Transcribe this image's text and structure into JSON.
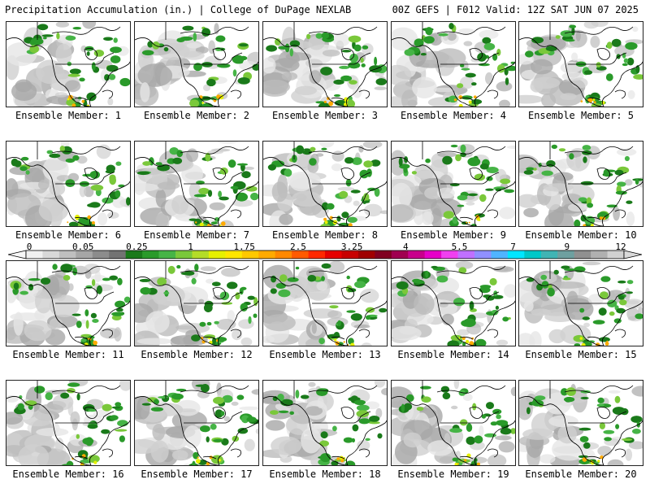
{
  "header": {
    "title": "Precipitation Accumulation (in.) | College of DuPage NEXLAB",
    "run_info": "00Z GEFS | F012 Valid: 12Z SAT JUN 07 2025"
  },
  "panels": [
    {
      "label": "Ensemble Member: 1"
    },
    {
      "label": "Ensemble Member: 2"
    },
    {
      "label": "Ensemble Member: 3"
    },
    {
      "label": "Ensemble Member: 4"
    },
    {
      "label": "Ensemble Member: 5"
    },
    {
      "label": "Ensemble Member: 6"
    },
    {
      "label": "Ensemble Member: 7"
    },
    {
      "label": "Ensemble Member: 8"
    },
    {
      "label": "Ensemble Member: 9"
    },
    {
      "label": "Ensemble Member: 10"
    },
    {
      "label": "Ensemble Member: 11"
    },
    {
      "label": "Ensemble Member: 12"
    },
    {
      "label": "Ensemble Member: 13"
    },
    {
      "label": "Ensemble Member: 14"
    },
    {
      "label": "Ensemble Member: 15"
    },
    {
      "label": "Ensemble Member: 16"
    },
    {
      "label": "Ensemble Member: 17"
    },
    {
      "label": "Ensemble Member: 18"
    },
    {
      "label": "Ensemble Member: 19"
    },
    {
      "label": "Ensemble Member: 20"
    }
  ],
  "colorbar": {
    "tick_labels": [
      "0",
      "0.05",
      "0.25",
      "1",
      "1.75",
      "2.5",
      "3.25",
      "4",
      "5.5",
      "7",
      "9",
      "12"
    ],
    "colors": [
      "#f0f0f0",
      "#d8d8d8",
      "#bfbfbf",
      "#a6a6a6",
      "#8c8c8c",
      "#737373",
      "#1a7a1a",
      "#2a9a2a",
      "#46b446",
      "#7ac83a",
      "#b4dc28",
      "#e6f000",
      "#ffe600",
      "#ffc800",
      "#ffaa00",
      "#ff8800",
      "#ff5a00",
      "#ff2800",
      "#e60000",
      "#c80000",
      "#a00000",
      "#800020",
      "#a00050",
      "#c8008c",
      "#e600c8",
      "#f040f0",
      "#c070ff",
      "#9090ff",
      "#50b4ff",
      "#00e6ff",
      "#00c8c8",
      "#40b4b4",
      "#6ea0a0",
      "#909090",
      "#b0b0b0",
      "#d0d0d0"
    ]
  }
}
